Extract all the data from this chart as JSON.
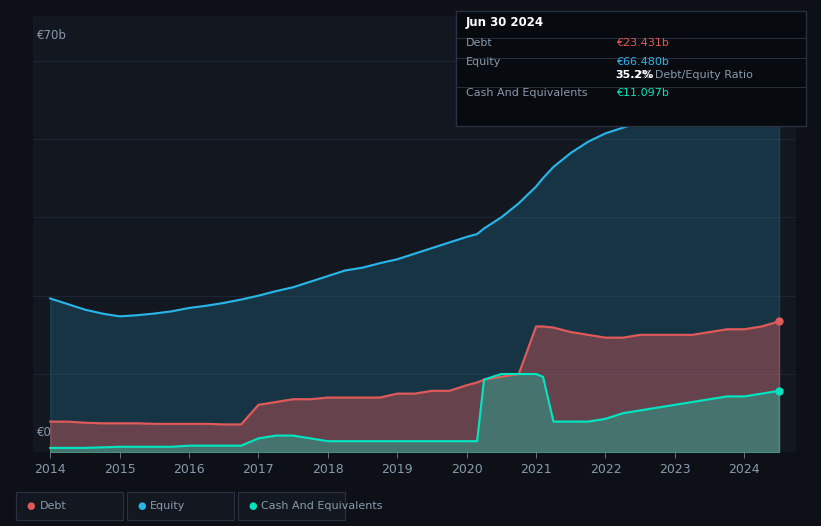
{
  "background_color": "#0d1117",
  "plot_bg_color": "#131820",
  "title_box": {
    "date": "Jun 30 2024",
    "debt_label": "Debt",
    "debt_value": "€23.431b",
    "equity_label": "Equity",
    "equity_value": "€66.480b",
    "ratio_value": "35.2%",
    "ratio_label": "Debt/Equity Ratio",
    "cash_label": "Cash And Equivalents",
    "cash_value": "€11.097b"
  },
  "ylabel_top": "€70b",
  "ylabel_bot": "€0",
  "ylim": [
    0,
    78
  ],
  "debt_color": "#e05a5a",
  "equity_color": "#29b5e8",
  "cash_color": "#00e5c0",
  "grid_color": "#1e2535",
  "tick_color": "#8899aa",
  "legend": {
    "debt": "Debt",
    "equity": "Equity",
    "cash": "Cash And Equivalents"
  },
  "x_years": [
    2014.0,
    2014.25,
    2014.5,
    2014.75,
    2015.0,
    2015.25,
    2015.5,
    2015.75,
    2016.0,
    2016.25,
    2016.5,
    2016.75,
    2017.0,
    2017.25,
    2017.5,
    2017.75,
    2018.0,
    2018.25,
    2018.5,
    2018.75,
    2019.0,
    2019.25,
    2019.5,
    2019.75,
    2020.0,
    2020.15,
    2020.25,
    2020.5,
    2020.75,
    2021.0,
    2021.1,
    2021.25,
    2021.5,
    2021.75,
    2022.0,
    2022.25,
    2022.5,
    2022.75,
    2023.0,
    2023.25,
    2023.5,
    2023.75,
    2024.0,
    2024.25,
    2024.5
  ],
  "equity": [
    27.5,
    26.5,
    25.5,
    24.8,
    24.3,
    24.5,
    24.8,
    25.2,
    25.8,
    26.2,
    26.7,
    27.3,
    28.0,
    28.8,
    29.5,
    30.5,
    31.5,
    32.5,
    33.0,
    33.8,
    34.5,
    35.5,
    36.5,
    37.5,
    38.5,
    39.0,
    40.0,
    42.0,
    44.5,
    47.5,
    49.0,
    51.0,
    53.5,
    55.5,
    57.0,
    58.0,
    59.0,
    60.0,
    61.0,
    62.0,
    63.0,
    64.0,
    64.5,
    65.5,
    66.5
  ],
  "debt": [
    5.5,
    5.5,
    5.3,
    5.2,
    5.2,
    5.2,
    5.1,
    5.1,
    5.1,
    5.1,
    5.0,
    5.0,
    8.5,
    9.0,
    9.5,
    9.5,
    9.8,
    9.8,
    9.8,
    9.8,
    10.5,
    10.5,
    11.0,
    11.0,
    12.0,
    12.5,
    13.0,
    13.5,
    14.0,
    22.5,
    22.5,
    22.3,
    21.5,
    21.0,
    20.5,
    20.5,
    21.0,
    21.0,
    21.0,
    21.0,
    21.5,
    22.0,
    22.0,
    22.5,
    23.4
  ],
  "cash": [
    0.8,
    0.8,
    0.8,
    0.9,
    1.0,
    1.0,
    1.0,
    1.0,
    1.2,
    1.2,
    1.2,
    1.2,
    2.5,
    3.0,
    3.0,
    2.5,
    2.0,
    2.0,
    2.0,
    2.0,
    2.0,
    2.0,
    2.0,
    2.0,
    2.0,
    2.0,
    13.0,
    14.0,
    14.0,
    14.0,
    13.5,
    5.5,
    5.5,
    5.5,
    6.0,
    7.0,
    7.5,
    8.0,
    8.5,
    9.0,
    9.5,
    10.0,
    10.0,
    10.5,
    11.0
  ]
}
